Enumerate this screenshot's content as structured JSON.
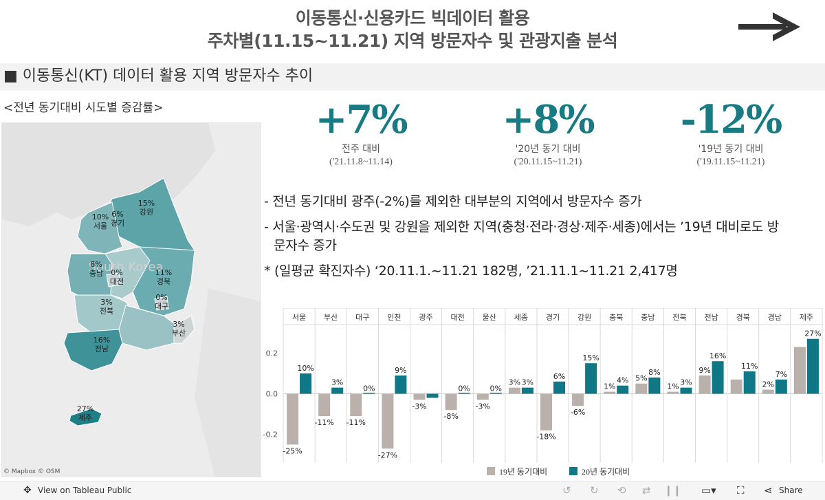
{
  "header": {
    "title_line1": "이동통신·신용카드 빅데이터 활용",
    "title_line2": "주차별(11.15~11.21) 지역 방문자수 및 관광지출 분석"
  },
  "section": {
    "title": "■ 이동통신(KT) 데이터 활용 지역 방문자수 추이"
  },
  "map": {
    "caption": "<전년 동기대비 시도별 증감률>",
    "credit": "© Mapbox  © OSM",
    "bg_label": "South Korea",
    "regions": [
      {
        "pct": "10%",
        "name": "서울"
      },
      {
        "pct": "6%",
        "name": "경기"
      },
      {
        "pct": "15%",
        "name": "강원"
      },
      {
        "pct": "8%",
        "name": "충남"
      },
      {
        "pct": "0%",
        "name": "대전"
      },
      {
        "pct": "11%",
        "name": "경북"
      },
      {
        "pct": "0%",
        "name": "대구"
      },
      {
        "pct": "3%",
        "name": "전북"
      },
      {
        "pct": "3%",
        "name": "부산"
      },
      {
        "pct": "16%",
        "name": "전남"
      },
      {
        "pct": "27%",
        "name": "제주"
      }
    ]
  },
  "kpis": [
    {
      "value": "+7%",
      "label": "전주 대비",
      "period": "('21.11.8~11.14)"
    },
    {
      "value": "+8%",
      "label": "'20년 동기 대비",
      "period": "('20.11.15~11.21)"
    },
    {
      "value": "-12%",
      "label": "'19년 동기 대비",
      "period": "('19.11.15~11.21)"
    }
  ],
  "notes": [
    "- 전년 동기대비 광주(-2%)를 제외한 대부분의 지역에서 방문자수 증가",
    "- 서울·광역시·수도권 및 강원을 제외한 지역(충청·전라·경상·제주·세종)에서는 ’19년 대비로도 방문자수 증가",
    "* (일평균 확진자수) ‘20.11.1.~11.21  182명, ’21.11.1~11.21  2,417명"
  ],
  "chart_data": {
    "type": "bar",
    "categories": [
      "서울",
      "부산",
      "대구",
      "인천",
      "광주",
      "대전",
      "울산",
      "세종",
      "경기",
      "강원",
      "충북",
      "충남",
      "전북",
      "전남",
      "경북",
      "경남",
      "제주"
    ],
    "series": [
      {
        "name": "19년 동기대비",
        "color": "#bab0ac",
        "values": [
          -0.25,
          -0.11,
          -0.11,
          -0.27,
          -0.03,
          -0.08,
          -0.03,
          0.03,
          -0.18,
          -0.06,
          0.01,
          0.05,
          0.01,
          0.09,
          0.07,
          0.02,
          0.23
        ],
        "labels": [
          "-25%",
          "-11%",
          "-11%",
          "-27%",
          "-3%",
          "-8%",
          "-3%",
          "3%",
          "-18%",
          "-6%",
          "1%",
          "5%",
          "1%",
          "9%",
          "",
          "2%",
          ""
        ]
      },
      {
        "name": "20년 동기대비",
        "color": "#0f7785",
        "values": [
          0.1,
          0.03,
          0.0,
          0.09,
          -0.02,
          0.0,
          0.0,
          0.03,
          0.06,
          0.15,
          0.04,
          0.08,
          0.03,
          0.16,
          0.11,
          0.07,
          0.27
        ],
        "labels": [
          "10%",
          "3%",
          "0%",
          "9%",
          "",
          "0%",
          "0%",
          "3%",
          "6%",
          "15%",
          "4%",
          "8%",
          "3%",
          "16%",
          "11%",
          "7%",
          "27%"
        ]
      }
    ],
    "yticks": [
      "0.2",
      "0.0",
      "-0.2"
    ],
    "ylim": [
      -0.34,
      0.34
    ],
    "legend_position": "bottom"
  },
  "footer": {
    "view_label": "View on Tableau Public",
    "share_label": "Share"
  }
}
